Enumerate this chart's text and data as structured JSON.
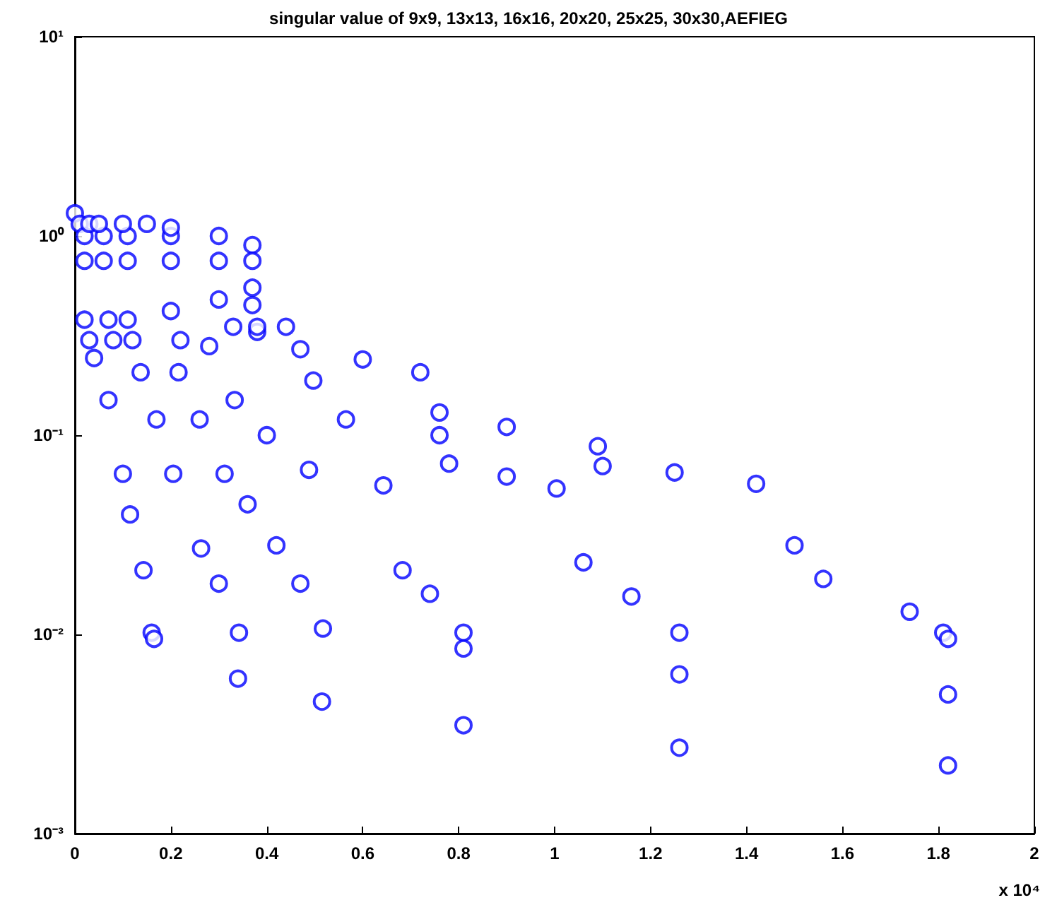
{
  "chart_data": {
    "type": "scatter",
    "title": "singular value of 9x9, 13x13, 16x16, 20x20, 25x25, 30x30,AEFIEG",
    "marker": "circle",
    "log": "y",
    "grid": false,
    "xlim": [
      0,
      2
    ],
    "xticks": [
      0,
      0.2,
      0.4,
      0.6,
      0.8,
      1,
      1.2,
      1.4,
      1.6,
      1.8,
      2
    ],
    "ylim": [
      0.001,
      10
    ],
    "yticks": [
      {
        "value": 0.001,
        "label": "10⁻³"
      },
      {
        "value": 0.01,
        "label": "10⁻²"
      },
      {
        "value": 0.1,
        "label": "10⁻¹"
      },
      {
        "value": 1,
        "label": "10⁰"
      },
      {
        "value": 10,
        "label": "10¹"
      }
    ],
    "annotations": [
      "x 10⁴"
    ],
    "series": [
      {
        "color": "#0000ff",
        "x": [
          0,
          0.01,
          0.02,
          0.02,
          0.02,
          0.03,
          0.04,
          0.07,
          0.1,
          0.115,
          0.143,
          0.16,
          0.165
        ],
        "values": [
          1.3,
          1.15,
          0.75,
          0.38,
          1.0,
          0.3,
          0.244,
          0.15,
          0.064,
          0.04,
          0.021,
          0.0102,
          0.0095
        ]
      },
      {
        "color": "#0000ff",
        "x": [
          0.03,
          0.06,
          0.06,
          0.07,
          0.08,
          0.137,
          0.17,
          0.205,
          0.263,
          0.3,
          0.342,
          0.34
        ],
        "values": [
          1.15,
          1.0,
          0.75,
          0.38,
          0.3,
          0.207,
          0.12,
          0.064,
          0.027,
          0.018,
          0.0102,
          0.006
        ]
      },
      {
        "color": "#0000ff",
        "x": [
          0.05,
          0.11,
          0.11,
          0.11,
          0.12,
          0.216,
          0.26,
          0.312,
          0.36,
          0.42,
          0.47,
          0.517,
          0.515
        ],
        "values": [
          1.15,
          1.0,
          0.75,
          0.38,
          0.3,
          0.207,
          0.12,
          0.064,
          0.045,
          0.028,
          0.018,
          0.0107,
          0.0046
        ]
      },
      {
        "color": "#0000ff",
        "x": [
          0.1,
          0.2,
          0.2,
          0.2,
          0.22,
          0.28,
          0.333,
          0.4,
          0.488,
          0.643,
          0.683,
          0.74,
          0.81,
          0.81,
          0.81
        ],
        "values": [
          1.15,
          1.0,
          0.75,
          0.42,
          0.3,
          0.28,
          0.15,
          0.1,
          0.067,
          0.056,
          0.021,
          0.016,
          0.0102,
          0.0085,
          0.0035
        ]
      },
      {
        "color": "#0000ff",
        "x": [
          0.15,
          0.3,
          0.3,
          0.3,
          0.33,
          0.38,
          0.497,
          0.565,
          0.76,
          0.78,
          0.9,
          1.004,
          1.06,
          1.16,
          1.26,
          1.26,
          1.26
        ],
        "values": [
          1.15,
          1.0,
          0.75,
          0.48,
          0.35,
          0.33,
          0.188,
          0.12,
          0.1,
          0.072,
          0.062,
          0.054,
          0.023,
          0.0155,
          0.0102,
          0.0063,
          0.0027
        ]
      },
      {
        "color": "#0000ff",
        "x": [
          0.2,
          0.37,
          0.37,
          0.37,
          0.37,
          0.38,
          0.44,
          0.47,
          0.6,
          0.72,
          0.76,
          0.9,
          1.09,
          1.1,
          1.25,
          1.42,
          1.5,
          1.56,
          1.74,
          1.81,
          1.82,
          1.82,
          1.82
        ],
        "values": [
          1.1,
          0.9,
          0.75,
          0.55,
          0.45,
          0.35,
          0.35,
          0.27,
          0.24,
          0.207,
          0.13,
          0.11,
          0.088,
          0.07,
          0.065,
          0.057,
          0.028,
          0.019,
          0.013,
          0.0102,
          0.0095,
          0.005,
          0.0022
        ]
      }
    ]
  }
}
